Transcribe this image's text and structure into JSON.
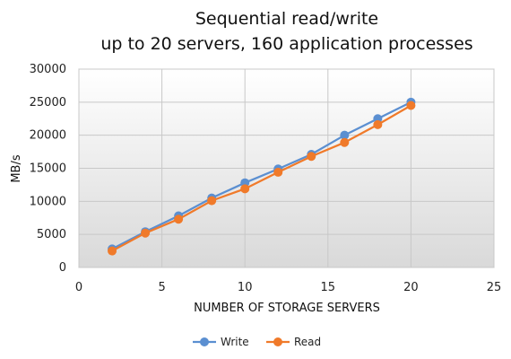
{
  "chart_data": {
    "type": "line",
    "title_lines": [
      "Sequential read/write",
      "up to 20 servers, 160 application processes"
    ],
    "xlabel": "NUMBER OF STORAGE SERVERS",
    "ylabel": "MB/s",
    "xlim": [
      0,
      25
    ],
    "ylim": [
      0,
      30000
    ],
    "x_ticks": [
      0,
      5,
      10,
      15,
      20,
      25
    ],
    "y_ticks": [
      0,
      5000,
      10000,
      15000,
      20000,
      25000,
      30000
    ],
    "grid": true,
    "legend_position": "bottom",
    "x": [
      2,
      4,
      6,
      8,
      10,
      12,
      14,
      16,
      18,
      20
    ],
    "series": [
      {
        "name": "Write",
        "color": "#5B8FD1",
        "values": [
          2800,
          5400,
          7800,
          10500,
          12800,
          14900,
          17100,
          20000,
          22500,
          25000
        ]
      },
      {
        "name": "Read",
        "color": "#F07A2A",
        "values": [
          2500,
          5200,
          7300,
          10100,
          11900,
          14400,
          16800,
          18900,
          21600,
          24500
        ]
      }
    ]
  }
}
